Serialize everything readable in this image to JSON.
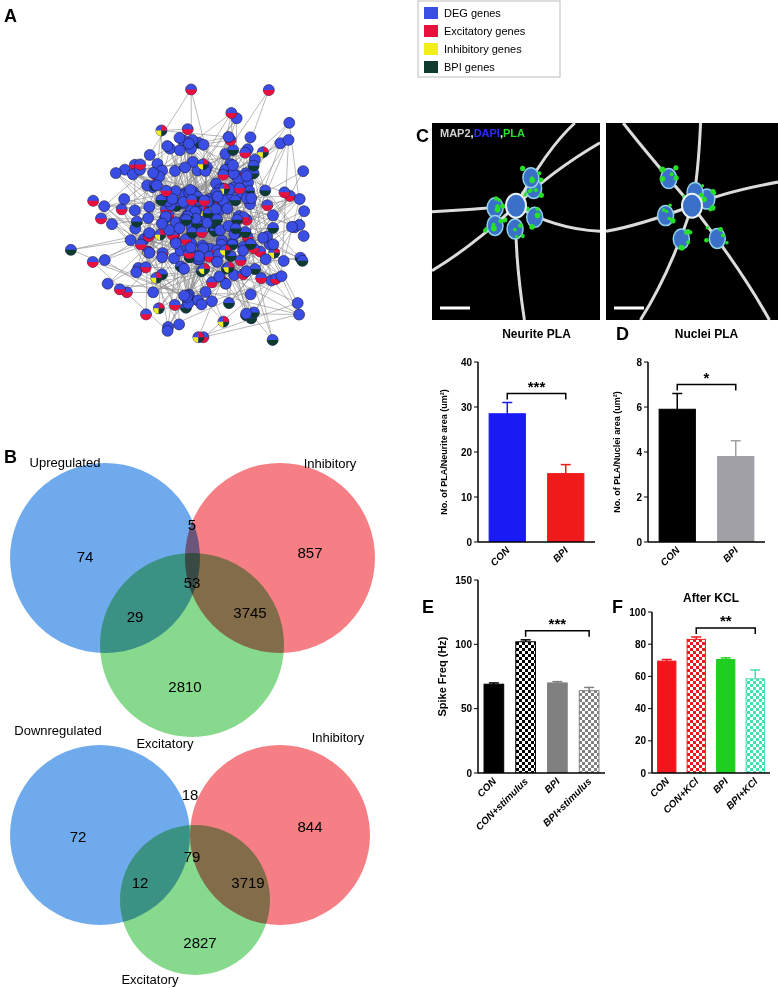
{
  "panel_labels": [
    "A",
    "B",
    "C",
    "D",
    "E",
    "F"
  ],
  "network": {
    "legend": [
      {
        "label": "DEG genes",
        "color": "#3a4ee6"
      },
      {
        "label": "Excitatory genes",
        "color": "#e8103c"
      },
      {
        "label": "Inhibitory genes",
        "color": "#f2ee1a"
      },
      {
        "label": "BPI genes",
        "color": "#0e3a30"
      }
    ]
  },
  "micrograph": {
    "stain_labels": [
      {
        "text": "MAP2",
        "color": "#d2d2d2"
      },
      {
        "text": "DAPI",
        "color": "#2a2aff"
      },
      {
        "text": "PLA",
        "color": "#27e02a"
      }
    ],
    "separator": ","
  },
  "venn": [
    {
      "sets": [
        {
          "label": "Upregulated",
          "color": "#3f8fe6"
        },
        {
          "label": "Inhibitory",
          "color": "#f2545b"
        },
        {
          "label": "Excitatory",
          "color": "#5fcc68"
        }
      ],
      "counts": {
        "A": 74,
        "AB": 5,
        "B": 857,
        "ABC": 53,
        "AC": 29,
        "BC": 3745,
        "C": 2810
      }
    },
    {
      "sets": [
        {
          "label": "Downregulated",
          "color": "#3f8fe6"
        },
        {
          "label": "Inhibitory",
          "color": "#f2545b"
        },
        {
          "label": "Excitatory",
          "color": "#5fcc68"
        }
      ],
      "counts": {
        "A": 72,
        "AB": 18,
        "B": 844,
        "ABC": 79,
        "AC": 12,
        "BC": 3719,
        "C": 2827
      }
    }
  ],
  "chart_data": [
    {
      "type": "bar",
      "title": "Neurite PLA",
      "ylabel": "No. of PLA/Neurite area (um²)",
      "categories": [
        "CON",
        "BPI"
      ],
      "values": [
        28.5,
        15.2
      ],
      "errors": [
        2.5,
        2
      ],
      "colors": [
        "#1a1af5",
        "#f01a1a"
      ],
      "ylim": [
        0,
        40
      ],
      "yticks": [
        0,
        10,
        20,
        30,
        40
      ],
      "annotations": [
        {
          "text": "***",
          "between": [
            "CON",
            "BPI"
          ]
        }
      ]
    },
    {
      "type": "bar",
      "title": "Nuclei PLA",
      "ylabel": "No. of PLA/Nuclei area (um²)",
      "categories": [
        "CON",
        "BPI"
      ],
      "values": [
        5.9,
        3.8
      ],
      "errors": [
        0.7,
        0.7
      ],
      "colors": [
        "#000000",
        "#a0a0a6"
      ],
      "ylim": [
        0,
        8
      ],
      "yticks": [
        0,
        2,
        4,
        6,
        8
      ],
      "annotations": [
        {
          "text": "*",
          "between": [
            "CON",
            "BPI"
          ]
        }
      ]
    },
    {
      "type": "bar",
      "ylabel": "Spike Freq (Hz)",
      "categories": [
        "CON",
        "CON+stimulus",
        "BPI",
        "BPI+stimulus"
      ],
      "values": [
        69,
        102,
        70,
        64
      ],
      "errors": [
        1,
        1.5,
        1,
        2.5
      ],
      "colors": [
        "#000000",
        "#000000",
        "#808080",
        "#808080"
      ],
      "ylim": [
        0,
        150
      ],
      "yticks": [
        0,
        50,
        100,
        150
      ],
      "annotations": [
        {
          "text": "***",
          "between": [
            "CON+stimulus",
            "BPI+stimulus"
          ]
        }
      ]
    },
    {
      "type": "bar",
      "title": "After KCL",
      "categories": [
        "CON",
        "CON+KCl",
        "BPI",
        "BPI+KCl"
      ],
      "values": [
        69.5,
        83,
        70.5,
        58.5
      ],
      "errors": [
        1,
        1.5,
        1,
        5.5
      ],
      "colors": [
        "#f0161b",
        "#f0161b",
        "#1fcf1f",
        "#40e0b0"
      ],
      "ylim": [
        0,
        100
      ],
      "yticks": [
        0,
        20,
        40,
        60,
        80,
        100
      ],
      "annotations": [
        {
          "text": "**",
          "between": [
            "CON+KCl",
            "BPI+KCl"
          ]
        }
      ]
    }
  ]
}
